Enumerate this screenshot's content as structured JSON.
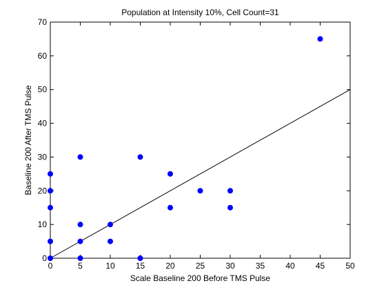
{
  "chart_data": {
    "type": "scatter",
    "title": "Population at Intensity 10%, Cell Count=31",
    "xlabel": "Scale Baseline 200 Before TMS Pulse",
    "ylabel": "Baseline 200 After TMS Pulse",
    "xlim": [
      0,
      50
    ],
    "ylim": [
      0,
      70
    ],
    "xticks": [
      0,
      5,
      10,
      15,
      20,
      25,
      30,
      35,
      40,
      45,
      50
    ],
    "yticks": [
      0,
      10,
      20,
      30,
      40,
      50,
      60,
      70
    ],
    "grid": false,
    "legend": "none",
    "marker_color": "#0000ff",
    "line_color": "#000000",
    "series": [
      {
        "type": "scatter",
        "points": [
          [
            0,
            0
          ],
          [
            0,
            5
          ],
          [
            0,
            15
          ],
          [
            0,
            20
          ],
          [
            0,
            25
          ],
          [
            5,
            0
          ],
          [
            5,
            5
          ],
          [
            5,
            10
          ],
          [
            5,
            30
          ],
          [
            10,
            5
          ],
          [
            10,
            10
          ],
          [
            15,
            0
          ],
          [
            15,
            30
          ],
          [
            20,
            15
          ],
          [
            20,
            25
          ],
          [
            25,
            20
          ],
          [
            30,
            15
          ],
          [
            30,
            20
          ],
          [
            45,
            65
          ]
        ]
      },
      {
        "type": "line",
        "points": [
          [
            0,
            0
          ],
          [
            50,
            50
          ]
        ]
      }
    ]
  }
}
